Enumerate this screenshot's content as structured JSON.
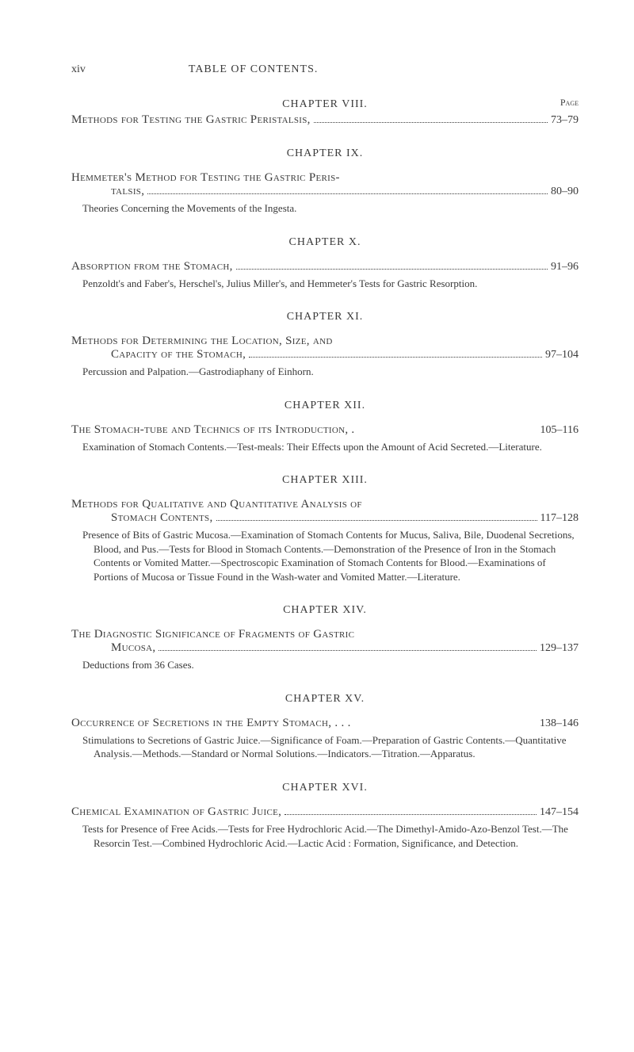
{
  "header": {
    "page_number": "xiv",
    "title": "TABLE OF CONTENTS.",
    "page_label": "Page"
  },
  "chapters": [
    {
      "title": "CHAPTER VIII.",
      "entries": [
        {
          "main": "Methods for Testing the Gastric Peristalsis,",
          "page_range": "73–79"
        }
      ]
    },
    {
      "title": "CHAPTER IX.",
      "entries": [
        {
          "main_line1": "Hemmeter's Method for Testing the Gastric Peris-",
          "main_line2": "talsis,",
          "page_range": "80–90",
          "sub": "Theories Concerning the Movements of the Ingesta."
        }
      ]
    },
    {
      "title": "CHAPTER X.",
      "entries": [
        {
          "main": "Absorption from the Stomach,",
          "page_range": "91–96",
          "sub": "Penzoldt's and Faber's, Herschel's, Julius Miller's, and Hemmeter's Tests for Gastric Resorption."
        }
      ]
    },
    {
      "title": "CHAPTER XI.",
      "entries": [
        {
          "main_line1": "Methods for Determining the Location, Size, and",
          "main_line2": "Capacity of the Stomach,",
          "page_range": "97–104",
          "sub": "Percussion and Palpation.—Gastrodiaphany of Einhorn."
        }
      ]
    },
    {
      "title": "CHAPTER XII.",
      "entries": [
        {
          "main": "The Stomach-tube and Technics of its Introduction, .",
          "page_range": "105–116",
          "sub": "Examination of Stomach Contents.—Test-meals: Their Effects upon the Amount of Acid Secreted.—Literature."
        }
      ]
    },
    {
      "title": "CHAPTER XIII.",
      "entries": [
        {
          "main_line1": "Methods for Qualitative and Quantitative Analysis of",
          "main_line2": "Stomach Contents,",
          "page_range": "117–128",
          "sub": "Presence of Bits of Gastric Mucosa.—Examination of Stomach Contents for Mucus, Saliva, Bile, Duodenal Secretions, Blood, and Pus.—Tests for Blood in Stomach Contents.—Demonstration of the Presence of Iron in the Stomach Contents or Vomited Matter.—Spectroscopic Examination of Stomach Contents for Blood.—Examinations of Portions of Mucosa or Tissue Found in the Wash-water and Vomited Matter.—Literature."
        }
      ]
    },
    {
      "title": "CHAPTER XIV.",
      "entries": [
        {
          "main_line1": "The Diagnostic Significance of Fragments of Gastric",
          "main_line2": "Mucosa,",
          "page_range": "129–137",
          "sub": "Deductions from 36 Cases."
        }
      ]
    },
    {
      "title": "CHAPTER XV.",
      "entries": [
        {
          "main": "Occurrence of Secretions in the Empty Stomach, . . .",
          "page_range": "138–146",
          "sub": "Stimulations to Secretions of Gastric Juice.—Significance of Foam.—Preparation of Gastric Contents.—Quantitative Analysis.—Methods.—Standard or Normal Solutions.—Indicators.—Titration.—Apparatus."
        }
      ]
    },
    {
      "title": "CHAPTER XVI.",
      "entries": [
        {
          "main": "Chemical Examination of Gastric Juice,",
          "page_range": "147–154",
          "sub": "Tests for Presence of Free Acids.—Tests for Free Hydrochloric Acid.—The Dimethyl-Amido-Azo-Benzol Test.—The Resorcin Test.—Combined Hydrochloric Acid.—Lactic Acid : Formation, Significance, and Detection."
        }
      ]
    }
  ]
}
